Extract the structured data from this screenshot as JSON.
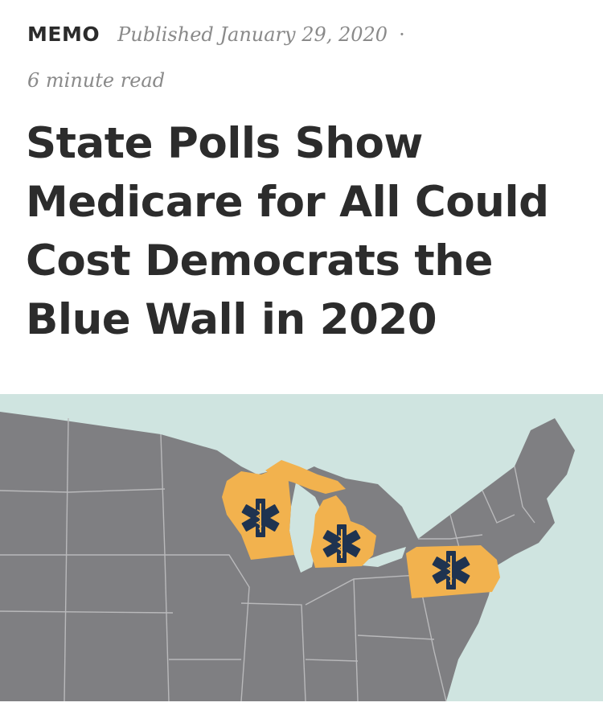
{
  "article": {
    "category": "MEMO",
    "published": "Published January 29, 2020",
    "separator": "·",
    "read_time": "6 minute read",
    "title": "State Polls Show Medicare for All Could Cost Democrats the Blue Wall in 2020"
  },
  "map": {
    "highlighted_states": [
      "Wisconsin",
      "Michigan",
      "Pennsylvania"
    ],
    "colors": {
      "water": "#cfe4e0",
      "land": "#7f7f82",
      "border": "#b9b9bb",
      "highlight": "#f2b24e",
      "icon": "#1f3350"
    },
    "icon": "star-of-life-icon"
  }
}
